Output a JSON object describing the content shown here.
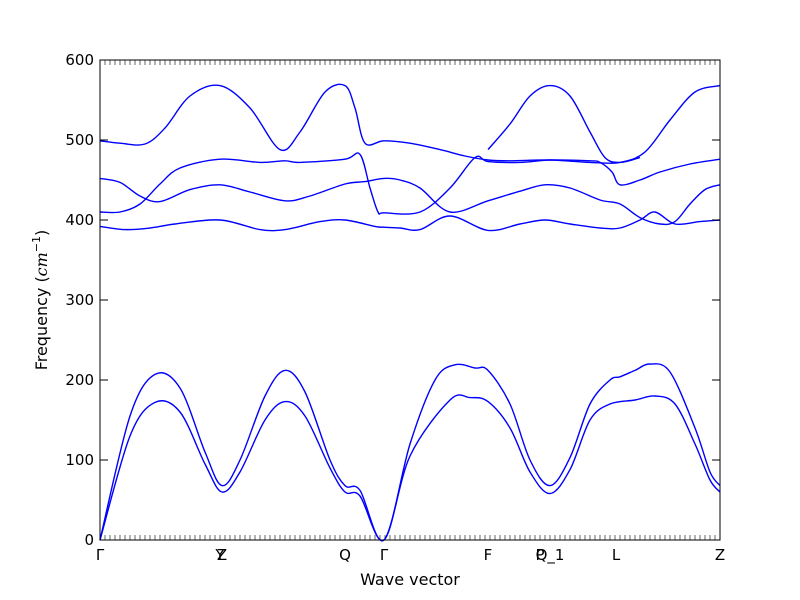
{
  "chart_data": {
    "type": "line",
    "title": "",
    "xlabel": "Wave vector",
    "ylabel": "Frequency",
    "ylabel_unit": "cm",
    "ylabel_unit_exp": "−1",
    "ylim": [
      0,
      600
    ],
    "xlim": [
      0,
      6.2
    ],
    "yticks": [
      0,
      100,
      200,
      300,
      400,
      500,
      600
    ],
    "line_color": "#0000ff",
    "grid": false,
    "legend": "none",
    "high_symmetry_points": [
      {
        "label": "Γ",
        "x": 0
      },
      {
        "label": "Y",
        "x": 1.2
      },
      {
        "label": "Z",
        "x": 1.22
      },
      {
        "label": "Q",
        "x": 2.45
      },
      {
        "label": "Γ",
        "x": 2.84
      },
      {
        "label": "F",
        "x": 3.88
      },
      {
        "label": "P",
        "x": 4.4
      },
      {
        "label": "Q_1",
        "x": 4.5
      },
      {
        "label": "L",
        "x": 5.16
      },
      {
        "label": "Z",
        "x": 6.2
      }
    ],
    "series": [
      {
        "values": [
          [
            0,
            0
          ],
          [
            0.3,
            130
          ],
          [
            0.55,
            172
          ],
          [
            0.8,
            160
          ],
          [
            1.05,
            95
          ],
          [
            1.22,
            60
          ],
          [
            1.4,
            85
          ],
          [
            1.65,
            150
          ],
          [
            1.85,
            173
          ],
          [
            2.05,
            155
          ],
          [
            2.3,
            90
          ],
          [
            2.45,
            60
          ],
          [
            2.6,
            55
          ],
          [
            2.84,
            0
          ],
          [
            3.1,
            105
          ],
          [
            3.5,
            175
          ],
          [
            3.7,
            178
          ],
          [
            3.88,
            173
          ],
          [
            4.1,
            140
          ],
          [
            4.3,
            85
          ],
          [
            4.5,
            58
          ],
          [
            4.7,
            88
          ],
          [
            4.9,
            150
          ],
          [
            5.1,
            170
          ],
          [
            5.35,
            175
          ],
          [
            5.55,
            180
          ],
          [
            5.75,
            170
          ],
          [
            5.95,
            120
          ],
          [
            6.1,
            75
          ],
          [
            6.2,
            60
          ]
        ]
      },
      {
        "values": [
          [
            0,
            0
          ],
          [
            0.3,
            155
          ],
          [
            0.55,
            207
          ],
          [
            0.8,
            190
          ],
          [
            1.05,
            110
          ],
          [
            1.22,
            68
          ],
          [
            1.4,
            100
          ],
          [
            1.65,
            180
          ],
          [
            1.85,
            212
          ],
          [
            2.05,
            185
          ],
          [
            2.3,
            100
          ],
          [
            2.45,
            68
          ],
          [
            2.6,
            62
          ],
          [
            2.84,
            0
          ],
          [
            3.1,
            120
          ],
          [
            3.35,
            200
          ],
          [
            3.55,
            219
          ],
          [
            3.75,
            215
          ],
          [
            3.88,
            212
          ],
          [
            4.1,
            170
          ],
          [
            4.3,
            100
          ],
          [
            4.5,
            68
          ],
          [
            4.7,
            103
          ],
          [
            4.9,
            170
          ],
          [
            5.1,
            200
          ],
          [
            5.2,
            204
          ],
          [
            5.35,
            212
          ],
          [
            5.5,
            220
          ],
          [
            5.7,
            210
          ],
          [
            5.95,
            140
          ],
          [
            6.1,
            85
          ],
          [
            6.2,
            68
          ]
        ]
      },
      {
        "values": [
          [
            0,
            392
          ],
          [
            0.25,
            388
          ],
          [
            0.5,
            390
          ],
          [
            0.75,
            395
          ],
          [
            1.2,
            400
          ],
          [
            1.6,
            388
          ],
          [
            1.85,
            388
          ],
          [
            2.2,
            398
          ],
          [
            2.45,
            400
          ],
          [
            2.75,
            392
          ],
          [
            2.84,
            391
          ],
          [
            3.0,
            390
          ],
          [
            3.2,
            388
          ],
          [
            3.5,
            405
          ],
          [
            3.88,
            387
          ],
          [
            4.2,
            395
          ],
          [
            4.45,
            400
          ],
          [
            4.7,
            395
          ],
          [
            5.0,
            390
          ],
          [
            5.2,
            390
          ],
          [
            5.4,
            400
          ],
          [
            5.55,
            410
          ],
          [
            5.75,
            395
          ],
          [
            6.0,
            398
          ],
          [
            6.2,
            400
          ]
        ]
      },
      {
        "values": [
          [
            0,
            410
          ],
          [
            0.2,
            410
          ],
          [
            0.4,
            420
          ],
          [
            0.6,
            445
          ],
          [
            0.8,
            465
          ],
          [
            1.2,
            476
          ],
          [
            1.6,
            472
          ],
          [
            1.85,
            474
          ],
          [
            2.0,
            472
          ],
          [
            2.45,
            476
          ],
          [
            2.6,
            482
          ],
          [
            2.7,
            440
          ],
          [
            2.78,
            410
          ],
          [
            2.84,
            409
          ],
          [
            3.2,
            410
          ],
          [
            3.5,
            440
          ],
          [
            3.75,
            478
          ],
          [
            3.88,
            473
          ],
          [
            4.2,
            472
          ],
          [
            4.5,
            475
          ],
          [
            4.9,
            474
          ],
          [
            5.0,
            472
          ],
          [
            5.12,
            460
          ],
          [
            5.2,
            444
          ],
          [
            5.4,
            450
          ],
          [
            5.6,
            460
          ],
          [
            5.9,
            470
          ],
          [
            6.2,
            476
          ]
        ]
      },
      {
        "values": [
          [
            0,
            452
          ],
          [
            0.2,
            447
          ],
          [
            0.4,
            430
          ],
          [
            0.6,
            423
          ],
          [
            0.9,
            438
          ],
          [
            1.2,
            444
          ],
          [
            1.5,
            435
          ],
          [
            1.85,
            424
          ],
          [
            2.1,
            430
          ],
          [
            2.45,
            445
          ],
          [
            2.65,
            448
          ],
          [
            2.84,
            452
          ],
          [
            3.0,
            450
          ],
          [
            3.2,
            440
          ],
          [
            3.5,
            410
          ],
          [
            3.88,
            424
          ],
          [
            4.2,
            436
          ],
          [
            4.45,
            444
          ],
          [
            4.7,
            440
          ],
          [
            5.0,
            425
          ],
          [
            5.2,
            420
          ],
          [
            5.4,
            403
          ],
          [
            5.6,
            395
          ],
          [
            5.75,
            398
          ],
          [
            5.9,
            420
          ],
          [
            6.05,
            438
          ],
          [
            6.2,
            444
          ]
        ]
      },
      {
        "values": [
          [
            0,
            499
          ],
          [
            0.2,
            496
          ],
          [
            0.45,
            495
          ],
          [
            0.65,
            515
          ],
          [
            0.9,
            555
          ],
          [
            1.2,
            568
          ],
          [
            1.5,
            540
          ],
          [
            1.8,
            488
          ],
          [
            2.0,
            510
          ],
          [
            2.25,
            560
          ],
          [
            2.45,
            568
          ],
          [
            2.55,
            540
          ],
          [
            2.65,
            496
          ],
          [
            2.84,
            499
          ],
          [
            3.1,
            496
          ],
          [
            3.4,
            488
          ],
          [
            3.65,
            480
          ],
          [
            3.88,
            475
          ],
          [
            4.1,
            474
          ],
          [
            4.5,
            475
          ],
          [
            4.9,
            472
          ],
          [
            5.2,
            472
          ],
          [
            5.45,
            485
          ],
          [
            5.7,
            525
          ],
          [
            5.95,
            560
          ],
          [
            6.2,
            568
          ]
        ]
      },
      {
        "values": [
          [
            3.88,
            488
          ],
          [
            4.1,
            520
          ],
          [
            4.3,
            555
          ],
          [
            4.5,
            568
          ],
          [
            4.7,
            555
          ],
          [
            4.9,
            510
          ],
          [
            5.05,
            478
          ],
          [
            5.2,
            472
          ],
          [
            5.4,
            478
          ]
        ]
      }
    ]
  }
}
